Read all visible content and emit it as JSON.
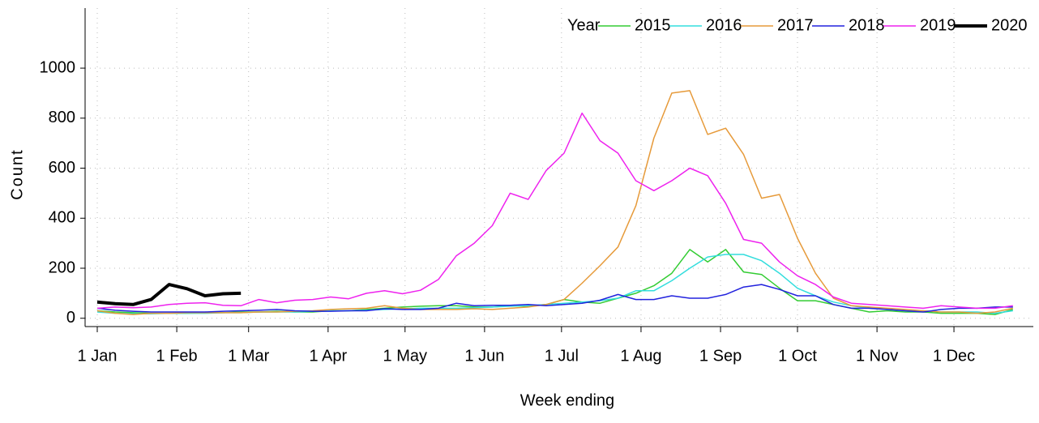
{
  "chart_data": {
    "type": "line",
    "x_label": "Week ending",
    "y_label": "Count",
    "legend_title": "Year",
    "x": [
      1,
      8,
      15,
      22,
      29,
      36,
      43,
      50,
      57,
      64,
      71,
      78,
      85,
      92,
      99,
      106,
      113,
      120,
      127,
      134,
      141,
      148,
      155,
      162,
      169,
      176,
      183,
      190,
      197,
      204,
      211,
      218,
      225,
      232,
      239,
      246,
      253,
      260,
      267,
      274,
      281,
      288,
      295,
      302,
      309,
      316,
      323,
      330,
      337,
      344,
      351,
      358
    ],
    "xlim": [
      1,
      365
    ],
    "xticks": [
      {
        "value": 1,
        "label": "1 Jan"
      },
      {
        "value": 32,
        "label": "1 Feb"
      },
      {
        "value": 60,
        "label": "1 Mar"
      },
      {
        "value": 91,
        "label": "1 Apr"
      },
      {
        "value": 121,
        "label": "1 May"
      },
      {
        "value": 152,
        "label": "1 Jun"
      },
      {
        "value": 182,
        "label": "1 Jul"
      },
      {
        "value": 213,
        "label": "1 Aug"
      },
      {
        "value": 244,
        "label": "1 Sep"
      },
      {
        "value": 274,
        "label": "1 Oct"
      },
      {
        "value": 305,
        "label": "1 Nov"
      },
      {
        "value": 335,
        "label": "1 Dec"
      }
    ],
    "ylim": [
      -30,
      1240
    ],
    "yticks": [
      0,
      200,
      400,
      600,
      800,
      1000
    ],
    "grid": true,
    "series": [
      {
        "name": "2015",
        "color": "#33cc33",
        "values": [
          30,
          25,
          22,
          20,
          20,
          20,
          22,
          22,
          25,
          25,
          28,
          25,
          25,
          30,
          30,
          35,
          40,
          45,
          48,
          50,
          50,
          45,
          45,
          50,
          48,
          55,
          75,
          65,
          60,
          80,
          100,
          130,
          180,
          275,
          225,
          275,
          185,
          175,
          120,
          70,
          70,
          55,
          40,
          25,
          30,
          25,
          25,
          20,
          20,
          20,
          15,
          35
        ]
      },
      {
        "name": "2016",
        "color": "#33dddd",
        "values": [
          25,
          20,
          18,
          18,
          20,
          20,
          20,
          22,
          22,
          25,
          25,
          25,
          28,
          30,
          30,
          32,
          35,
          38,
          40,
          40,
          40,
          42,
          45,
          48,
          50,
          55,
          60,
          65,
          70,
          80,
          110,
          110,
          150,
          200,
          245,
          255,
          255,
          230,
          180,
          120,
          90,
          65,
          50,
          40,
          35,
          30,
          30,
          25,
          25,
          25,
          20,
          30
        ]
      },
      {
        "name": "2017",
        "color": "#e69a3a",
        "values": [
          30,
          20,
          15,
          20,
          20,
          22,
          22,
          22,
          22,
          25,
          25,
          28,
          30,
          35,
          38,
          40,
          50,
          40,
          35,
          35,
          35,
          38,
          35,
          40,
          45,
          55,
          75,
          140,
          210,
          285,
          450,
          720,
          900,
          910,
          735,
          760,
          655,
          480,
          495,
          320,
          180,
          80,
          50,
          45,
          40,
          35,
          30,
          25,
          25,
          20,
          25,
          40
        ]
      },
      {
        "name": "2018",
        "color": "#2222dd",
        "values": [
          40,
          32,
          28,
          25,
          25,
          25,
          25,
          28,
          30,
          32,
          35,
          30,
          28,
          28,
          30,
          30,
          38,
          35,
          35,
          40,
          60,
          50,
          52,
          52,
          55,
          50,
          55,
          60,
          72,
          95,
          75,
          75,
          90,
          80,
          80,
          95,
          125,
          135,
          115,
          90,
          90,
          55,
          40,
          40,
          35,
          30,
          25,
          35,
          40,
          40,
          45,
          45
        ]
      },
      {
        "name": "2019",
        "color": "#ee22ee",
        "values": [
          40,
          45,
          42,
          45,
          55,
          60,
          62,
          52,
          50,
          75,
          62,
          72,
          75,
          85,
          78,
          100,
          110,
          98,
          112,
          155,
          250,
          300,
          370,
          500,
          475,
          590,
          660,
          820,
          710,
          660,
          550,
          510,
          550,
          600,
          570,
          460,
          315,
          300,
          225,
          170,
          135,
          85,
          60,
          55,
          50,
          45,
          40,
          50,
          45,
          40,
          40,
          50
        ]
      },
      {
        "name": "2020",
        "color": "#000000",
        "width": 4,
        "values": [
          65,
          58,
          55,
          75,
          135,
          118,
          90,
          98,
          100,
          null,
          null,
          null,
          null,
          null,
          null,
          null,
          null,
          null,
          null,
          null,
          null,
          null,
          null,
          null,
          null,
          null,
          null,
          null,
          null,
          null,
          null,
          null,
          null,
          null,
          null,
          null,
          null,
          null,
          null,
          null,
          null,
          null,
          null,
          null,
          null,
          null,
          null,
          null,
          null,
          null,
          null,
          null
        ]
      }
    ]
  }
}
